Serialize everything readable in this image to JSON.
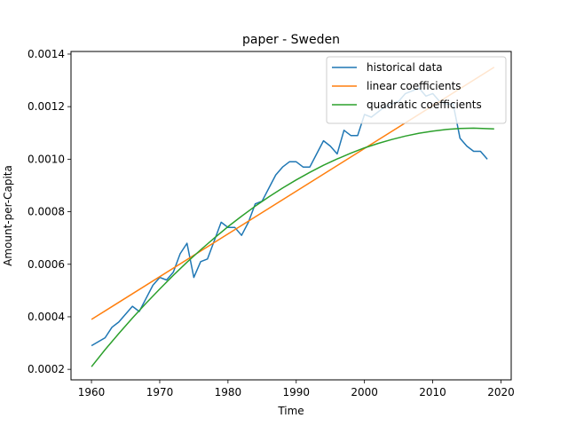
{
  "chart_data": {
    "type": "line",
    "title": "paper - Sweden",
    "xlabel": "Time",
    "ylabel": "Amount-per-Capita",
    "xlim": [
      1957,
      2021.5
    ],
    "ylim": [
      0.00016,
      0.00141
    ],
    "xticks": [
      1960,
      1970,
      1980,
      1990,
      2000,
      2010,
      2020
    ],
    "xtick_labels": [
      "1960",
      "1970",
      "1980",
      "1990",
      "2000",
      "2010",
      "2020"
    ],
    "yticks": [
      0.0002,
      0.0004,
      0.0006,
      0.0008,
      0.001,
      0.0012,
      0.0014
    ],
    "ytick_labels": [
      "0.0002",
      "0.0004",
      "0.0006",
      "0.0008",
      "0.0010",
      "0.0012",
      "0.0014"
    ],
    "grid": false,
    "legend_position": "top-right",
    "series": [
      {
        "name": "historical data",
        "color": "#1f77b4",
        "x": [
          1960,
          1962,
          1963,
          1964,
          1966,
          1967,
          1968,
          1969,
          1970,
          1971,
          1972,
          1973,
          1974,
          1975,
          1976,
          1977,
          1978,
          1979,
          1980,
          1981,
          1982,
          1983,
          1984,
          1985,
          1986,
          1987,
          1988,
          1989,
          1990,
          1991,
          1992,
          1993,
          1994,
          1995,
          1996,
          1997,
          1998,
          1999,
          2000,
          2001,
          2002,
          2003,
          2004,
          2005,
          2006,
          2007,
          2008,
          2009,
          2010,
          2011,
          2012,
          2013,
          2014,
          2015,
          2016,
          2017,
          2018
        ],
        "y": [
          0.00029,
          0.00032,
          0.00036,
          0.00038,
          0.00044,
          0.00042,
          0.00047,
          0.00052,
          0.00055,
          0.00054,
          0.00057,
          0.00064,
          0.00068,
          0.00055,
          0.00061,
          0.00062,
          0.00069,
          0.00076,
          0.00074,
          0.00074,
          0.00071,
          0.00076,
          0.00083,
          0.00084,
          0.00089,
          0.00094,
          0.00097,
          0.00099,
          0.00099,
          0.00097,
          0.00097,
          0.00102,
          0.00107,
          0.00105,
          0.00102,
          0.00111,
          0.00109,
          0.00109,
          0.00117,
          0.00116,
          0.00118,
          0.0012,
          0.00121,
          0.00122,
          0.00125,
          0.00126,
          0.00127,
          0.00124,
          0.00125,
          0.00122,
          0.00121,
          0.00121,
          0.00108,
          0.00105,
          0.00103,
          0.00103,
          0.001
        ]
      },
      {
        "name": "linear coefficients",
        "color": "#ff7f0e",
        "x": [
          1960,
          2019
        ],
        "y": [
          0.00039,
          0.00135
        ]
      },
      {
        "name": "quadratic coefficients",
        "color": "#2ca02c",
        "x": [
          1960,
          1962,
          1964,
          1966,
          1968,
          1970,
          1972,
          1974,
          1976,
          1978,
          1980,
          1982,
          1984,
          1986,
          1988,
          1990,
          1992,
          1994,
          1996,
          1998,
          2000,
          2002,
          2004,
          2006,
          2008,
          2010,
          2012,
          2014,
          2016,
          2019
        ],
        "y": [
          0.00021,
          0.000275,
          0.000336,
          0.000395,
          0.000452,
          0.000506,
          0.000558,
          0.000608,
          0.000655,
          0.0007,
          0.000743,
          0.000783,
          0.000821,
          0.000857,
          0.00089,
          0.000921,
          0.00095,
          0.000977,
          0.001001,
          0.001023,
          0.001043,
          0.00106,
          0.001075,
          0.001088,
          0.001099,
          0.001107,
          0.001113,
          0.001117,
          0.001118,
          0.001115
        ]
      }
    ]
  }
}
